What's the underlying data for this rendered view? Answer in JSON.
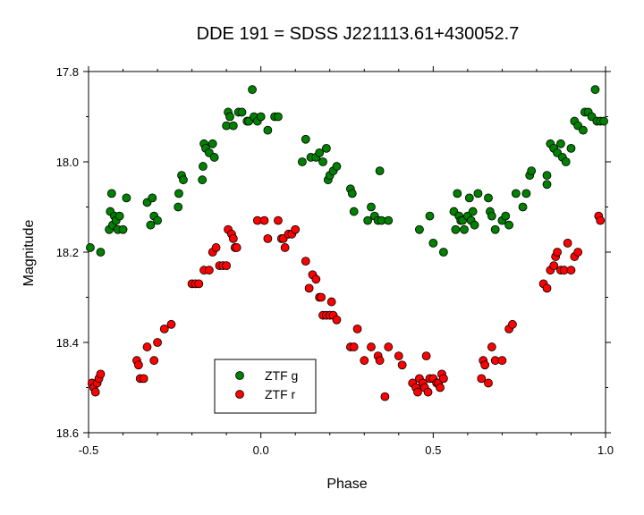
{
  "chart_data": {
    "type": "scatter",
    "title": "DDE 191 = SDSS J221113.61+430052.7",
    "xlabel": "Phase",
    "ylabel": "Magnitude",
    "xlim": [
      -0.5,
      1.0
    ],
    "ylim": [
      17.8,
      18.6
    ],
    "y_inverted": true,
    "grid": false,
    "legend_position": "bottom-center",
    "x_ticks": [
      "-0.5",
      "0.0",
      "0.5",
      "1.0"
    ],
    "y_ticks": [
      "17.8",
      "18.0",
      "18.2",
      "18.4",
      "18.6"
    ],
    "series": [
      {
        "name": "ZTF g",
        "color": "#008000",
        "points": [
          [
            -0.495,
            18.19
          ],
          [
            -0.465,
            18.2
          ],
          [
            -0.44,
            18.15
          ],
          [
            -0.437,
            18.11
          ],
          [
            -0.433,
            18.07
          ],
          [
            -0.43,
            18.14
          ],
          [
            -0.425,
            18.12
          ],
          [
            -0.42,
            18.13
          ],
          [
            -0.415,
            18.15
          ],
          [
            -0.41,
            18.12
          ],
          [
            -0.4,
            18.15
          ],
          [
            -0.39,
            18.08
          ],
          [
            -0.33,
            18.09
          ],
          [
            -0.32,
            18.14
          ],
          [
            -0.315,
            18.08
          ],
          [
            -0.31,
            18.12
          ],
          [
            -0.3,
            18.13
          ],
          [
            -0.24,
            18.1
          ],
          [
            -0.238,
            18.07
          ],
          [
            -0.23,
            18.03
          ],
          [
            -0.225,
            18.04
          ],
          [
            -0.17,
            18.04
          ],
          [
            -0.168,
            18.01
          ],
          [
            -0.165,
            17.96
          ],
          [
            -0.16,
            17.97
          ],
          [
            -0.15,
            17.98
          ],
          [
            -0.14,
            17.96
          ],
          [
            -0.135,
            17.99
          ],
          [
            -0.1,
            17.92
          ],
          [
            -0.095,
            17.89
          ],
          [
            -0.09,
            17.9
          ],
          [
            -0.08,
            17.92
          ],
          [
            -0.065,
            17.89
          ],
          [
            -0.055,
            17.89
          ],
          [
            -0.04,
            17.91
          ],
          [
            -0.035,
            17.91
          ],
          [
            -0.025,
            17.84
          ],
          [
            -0.02,
            17.9
          ],
          [
            -0.01,
            17.91
          ],
          [
            0.0,
            17.9
          ],
          [
            0.02,
            17.93
          ],
          [
            0.04,
            17.9
          ],
          [
            0.05,
            17.9
          ],
          [
            0.12,
            18.0
          ],
          [
            0.13,
            17.95
          ],
          [
            0.145,
            17.99
          ],
          [
            0.16,
            17.99
          ],
          [
            0.17,
            17.98
          ],
          [
            0.18,
            18.0
          ],
          [
            0.19,
            17.97
          ],
          [
            0.195,
            18.04
          ],
          [
            0.2,
            18.03
          ],
          [
            0.21,
            18.02
          ],
          [
            0.22,
            18.01
          ],
          [
            0.26,
            18.06
          ],
          [
            0.265,
            18.07
          ],
          [
            0.27,
            18.11
          ],
          [
            0.31,
            18.13
          ],
          [
            0.32,
            18.1
          ],
          [
            0.33,
            18.12
          ],
          [
            0.34,
            18.13
          ],
          [
            0.345,
            18.02
          ],
          [
            0.35,
            18.13
          ],
          [
            0.37,
            18.13
          ],
          [
            0.46,
            18.15
          ],
          [
            0.49,
            18.12
          ],
          [
            0.5,
            18.18
          ],
          [
            0.53,
            18.2
          ],
          [
            0.56,
            18.11
          ],
          [
            0.565,
            18.15
          ],
          [
            0.57,
            18.07
          ],
          [
            0.575,
            18.12
          ],
          [
            0.58,
            18.13
          ],
          [
            0.585,
            18.13
          ],
          [
            0.59,
            18.15
          ],
          [
            0.6,
            18.12
          ],
          [
            0.605,
            18.08
          ],
          [
            0.61,
            18.13
          ],
          [
            0.615,
            18.11
          ],
          [
            0.62,
            18.14
          ],
          [
            0.63,
            18.07
          ],
          [
            0.66,
            18.08
          ],
          [
            0.665,
            18.11
          ],
          [
            0.67,
            18.12
          ],
          [
            0.68,
            18.15
          ],
          [
            0.7,
            18.13
          ],
          [
            0.71,
            18.12
          ],
          [
            0.72,
            18.14
          ],
          [
            0.74,
            18.07
          ],
          [
            0.76,
            18.1
          ],
          [
            0.77,
            18.07
          ],
          [
            0.78,
            18.03
          ],
          [
            0.785,
            18.02
          ],
          [
            0.83,
            18.03
          ],
          [
            0.83,
            18.05
          ],
          [
            0.84,
            17.96
          ],
          [
            0.85,
            17.97
          ],
          [
            0.86,
            17.98
          ],
          [
            0.87,
            17.96
          ],
          [
            0.875,
            17.99
          ],
          [
            0.885,
            18.0
          ],
          [
            0.9,
            17.97
          ],
          [
            0.91,
            17.91
          ],
          [
            0.92,
            17.92
          ],
          [
            0.935,
            17.93
          ],
          [
            0.94,
            17.89
          ],
          [
            0.95,
            17.89
          ],
          [
            0.96,
            17.9
          ],
          [
            0.97,
            17.84
          ],
          [
            0.975,
            17.91
          ],
          [
            0.985,
            17.91
          ],
          [
            0.995,
            17.91
          ]
        ]
      },
      {
        "name": "ZTF r",
        "color": "#ff0000",
        "points": [
          [
            -0.49,
            18.49
          ],
          [
            -0.485,
            18.5
          ],
          [
            -0.48,
            18.51
          ],
          [
            -0.475,
            18.49
          ],
          [
            -0.47,
            18.48
          ],
          [
            -0.465,
            18.47
          ],
          [
            -0.36,
            18.44
          ],
          [
            -0.355,
            18.45
          ],
          [
            -0.35,
            18.48
          ],
          [
            -0.34,
            18.48
          ],
          [
            -0.33,
            18.41
          ],
          [
            -0.31,
            18.44
          ],
          [
            -0.3,
            18.4
          ],
          [
            -0.28,
            18.37
          ],
          [
            -0.26,
            18.36
          ],
          [
            -0.2,
            18.27
          ],
          [
            -0.19,
            18.27
          ],
          [
            -0.18,
            18.27
          ],
          [
            -0.165,
            18.24
          ],
          [
            -0.15,
            18.24
          ],
          [
            -0.14,
            18.2
          ],
          [
            -0.13,
            18.19
          ],
          [
            -0.12,
            18.23
          ],
          [
            -0.11,
            18.23
          ],
          [
            -0.1,
            18.23
          ],
          [
            -0.095,
            18.15
          ],
          [
            -0.085,
            18.16
          ],
          [
            -0.08,
            18.17
          ],
          [
            -0.075,
            18.19
          ],
          [
            -0.07,
            18.19
          ],
          [
            -0.01,
            18.13
          ],
          [
            0.01,
            18.13
          ],
          [
            0.02,
            18.17
          ],
          [
            0.05,
            18.13
          ],
          [
            0.06,
            18.17
          ],
          [
            0.065,
            18.17
          ],
          [
            0.07,
            18.19
          ],
          [
            0.08,
            18.16
          ],
          [
            0.09,
            18.16
          ],
          [
            0.1,
            18.15
          ],
          [
            0.13,
            18.22
          ],
          [
            0.14,
            18.28
          ],
          [
            0.15,
            18.25
          ],
          [
            0.16,
            18.26
          ],
          [
            0.17,
            18.3
          ],
          [
            0.175,
            18.3
          ],
          [
            0.18,
            18.34
          ],
          [
            0.19,
            18.34
          ],
          [
            0.2,
            18.34
          ],
          [
            0.205,
            18.31
          ],
          [
            0.21,
            18.34
          ],
          [
            0.22,
            18.35
          ],
          [
            0.26,
            18.41
          ],
          [
            0.27,
            18.41
          ],
          [
            0.28,
            18.37
          ],
          [
            0.3,
            18.44
          ],
          [
            0.32,
            18.41
          ],
          [
            0.34,
            18.43
          ],
          [
            0.345,
            18.44
          ],
          [
            0.36,
            18.52
          ],
          [
            0.37,
            18.41
          ],
          [
            0.4,
            18.43
          ],
          [
            0.41,
            18.45
          ],
          [
            0.44,
            18.49
          ],
          [
            0.45,
            18.5
          ],
          [
            0.455,
            18.51
          ],
          [
            0.46,
            18.48
          ],
          [
            0.47,
            18.49
          ],
          [
            0.475,
            18.5
          ],
          [
            0.48,
            18.43
          ],
          [
            0.485,
            18.51
          ],
          [
            0.49,
            18.48
          ],
          [
            0.5,
            18.48
          ],
          [
            0.51,
            18.49
          ],
          [
            0.515,
            18.49
          ],
          [
            0.52,
            18.5
          ],
          [
            0.525,
            18.47
          ],
          [
            0.53,
            18.48
          ],
          [
            0.64,
            18.48
          ],
          [
            0.645,
            18.44
          ],
          [
            0.65,
            18.45
          ],
          [
            0.66,
            18.49
          ],
          [
            0.67,
            18.41
          ],
          [
            0.68,
            18.44
          ],
          [
            0.7,
            18.44
          ],
          [
            0.72,
            18.37
          ],
          [
            0.73,
            18.36
          ],
          [
            0.82,
            18.27
          ],
          [
            0.83,
            18.28
          ],
          [
            0.84,
            18.24
          ],
          [
            0.85,
            18.23
          ],
          [
            0.855,
            18.21
          ],
          [
            0.86,
            18.2
          ],
          [
            0.87,
            18.24
          ],
          [
            0.88,
            18.24
          ],
          [
            0.89,
            18.18
          ],
          [
            0.9,
            18.24
          ],
          [
            0.91,
            18.21
          ],
          [
            0.92,
            18.2
          ],
          [
            0.98,
            18.12
          ],
          [
            0.985,
            18.13
          ]
        ]
      }
    ]
  }
}
